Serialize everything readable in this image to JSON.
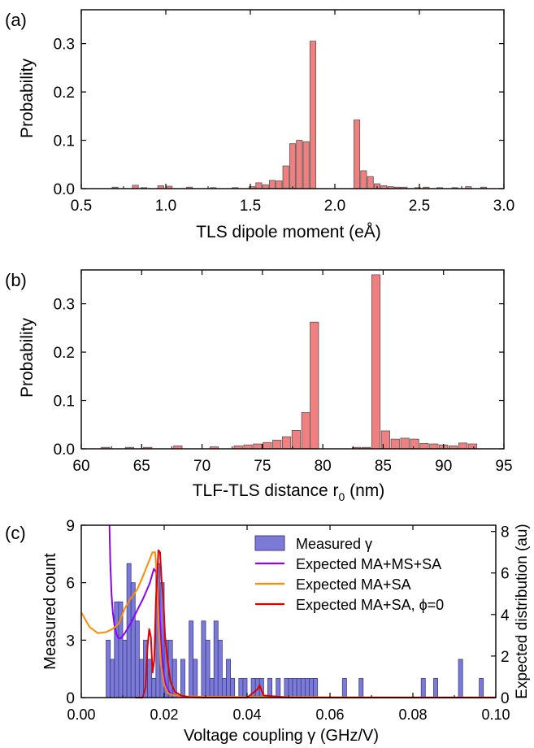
{
  "colors": {
    "bar_fill_red": "#f08080",
    "bar_stroke_red": "#555555",
    "bar_fill_blue": "#7b7ad6",
    "bar_stroke_blue": "#3c3c8c",
    "line_purple": "#8b00ff",
    "line_orange": "#ff8c00",
    "line_red": "#e00000"
  },
  "chart_data": [
    {
      "panel_label": "(a)",
      "type": "bar",
      "xlabel": "TLS dipole moment (eÅ)",
      "ylabel": "Probability",
      "xlim": [
        0.5,
        3.0
      ],
      "ylim": [
        0,
        0.37
      ],
      "bar_width": 0.035,
      "xticks": [
        0.5,
        1.0,
        1.5,
        2.0,
        2.5,
        3.0
      ],
      "xtick_labels": [
        "0.5",
        "1.0",
        "1.5",
        "2.0",
        "2.5",
        "3.0"
      ],
      "yticks": [
        0.0,
        0.1,
        0.2,
        0.3
      ],
      "ytick_labels": [
        "0.0",
        "0.1",
        "0.2",
        "0.3"
      ],
      "x": [
        0.7,
        0.82,
        0.87,
        0.97,
        1.02,
        1.14,
        1.28,
        1.41,
        1.51,
        1.55,
        1.59,
        1.63,
        1.67,
        1.71,
        1.75,
        1.79,
        1.83,
        1.87,
        1.91,
        2.13,
        2.17,
        2.21,
        2.25,
        2.29,
        2.33,
        2.37,
        2.41,
        2.49,
        2.54,
        2.62,
        2.71,
        2.79,
        2.88
      ],
      "values": [
        0.003,
        0.007,
        0.002,
        0.006,
        0.005,
        0.003,
        0.002,
        0.002,
        0.004,
        0.012,
        0.008,
        0.017,
        0.016,
        0.047,
        0.093,
        0.1,
        0.097,
        0.305,
        0.0,
        0.142,
        0.037,
        0.025,
        0.01,
        0.006,
        0.004,
        0.003,
        0.003,
        0.002,
        0.003,
        0.002,
        0.002,
        0.004,
        0.003
      ]
    },
    {
      "panel_label": "(b)",
      "type": "bar",
      "xlabel": "TLF-TLS distance r",
      "xlabel_sub": "0",
      "xlabel_tail": " (nm)",
      "ylabel": "Probability",
      "xlim": [
        60,
        95
      ],
      "ylim": [
        0,
        0.37
      ],
      "bar_width": 0.7,
      "xticks": [
        60,
        65,
        70,
        75,
        80,
        85,
        90,
        95
      ],
      "xtick_labels": [
        "60",
        "65",
        "70",
        "75",
        "80",
        "85",
        "90",
        "95"
      ],
      "yticks": [
        0.0,
        0.1,
        0.2,
        0.3
      ],
      "ytick_labels": [
        "0.0",
        "0.1",
        "0.2",
        "0.3"
      ],
      "x": [
        62,
        64,
        65.5,
        68,
        71,
        73,
        73.8,
        74.6,
        75.4,
        76.2,
        77,
        77.8,
        78.6,
        79.3,
        82.8,
        83.6,
        84.4,
        85.2,
        86,
        86.8,
        87.6,
        88.4,
        89.2,
        90,
        90.8,
        91.6,
        92.4
      ],
      "values": [
        0.003,
        0.003,
        0.003,
        0.006,
        0.004,
        0.006,
        0.008,
        0.01,
        0.013,
        0.018,
        0.025,
        0.038,
        0.075,
        0.262,
        0.003,
        0.003,
        0.36,
        0.037,
        0.02,
        0.022,
        0.02,
        0.011,
        0.01,
        0.008,
        0.006,
        0.012,
        0.01
      ]
    },
    {
      "panel_label": "(c)",
      "type": "bar",
      "xlabel": "Voltage coupling γ (GHz/V)",
      "ylabel": "Measured count",
      "ylabel_right": "Expected distribution (au)",
      "xlim": [
        0.0,
        0.1
      ],
      "ylim": [
        0,
        9
      ],
      "ylim_right": [
        0,
        8.3
      ],
      "bar_width": 0.001,
      "xticks": [
        0.0,
        0.02,
        0.04,
        0.06,
        0.08,
        0.1
      ],
      "xtick_labels": [
        "0.00",
        "0.02",
        "0.04",
        "0.06",
        "0.08",
        "0.10"
      ],
      "yticks": [
        0,
        3,
        6,
        9
      ],
      "ytick_labels": [
        "0",
        "3",
        "6",
        "9"
      ],
      "yticks_right": [
        0,
        2,
        4,
        6,
        8
      ],
      "ytick_labels_right": [
        "0",
        "2",
        "4",
        "6",
        "8"
      ],
      "histogram": {
        "name": "Measured γ",
        "x": [
          0.0065,
          0.0075,
          0.0085,
          0.0095,
          0.0105,
          0.0115,
          0.0125,
          0.0135,
          0.0145,
          0.0155,
          0.0165,
          0.0175,
          0.0185,
          0.0195,
          0.0205,
          0.0215,
          0.0225,
          0.0245,
          0.0265,
          0.0275,
          0.0295,
          0.0305,
          0.0315,
          0.0325,
          0.0335,
          0.0345,
          0.0355,
          0.0365,
          0.0385,
          0.0395,
          0.0415,
          0.0425,
          0.0435,
          0.0455,
          0.0475,
          0.0495,
          0.0505,
          0.0515,
          0.0525,
          0.0535,
          0.0545,
          0.0555,
          0.0565,
          0.0635,
          0.0675,
          0.0825,
          0.0855,
          0.0915,
          0.0965
        ],
        "values": [
          3,
          2,
          5,
          5,
          3,
          7,
          6,
          4,
          2,
          3,
          2,
          1,
          7,
          6,
          3,
          3,
          2,
          2,
          4,
          2,
          4,
          3,
          1,
          4,
          3,
          1,
          2,
          1,
          1,
          1,
          1,
          1,
          1,
          1,
          1,
          1,
          1,
          1,
          1,
          1,
          1,
          1,
          1,
          1,
          1,
          1,
          1,
          2,
          1
        ]
      },
      "series": [
        {
          "name": "Expected MA+MS+SA",
          "x": [
            0.0068,
            0.007,
            0.0073,
            0.0076,
            0.008,
            0.0085,
            0.009,
            0.0095,
            0.0105,
            0.012,
            0.0135,
            0.015,
            0.0165,
            0.0175,
            0.0182,
            0.0188,
            0.0193,
            0.0198,
            0.0205,
            0.0215,
            0.023,
            0.026,
            0.03,
            0.04,
            0.06,
            0.08,
            0.1
          ],
          "values": [
            8.3,
            6.5,
            5.0,
            4.1,
            3.5,
            3.05,
            2.85,
            2.85,
            3.1,
            3.6,
            4.2,
            4.8,
            5.5,
            6.2,
            6.0,
            4.4,
            2.6,
            1.2,
            0.5,
            0.2,
            0.08,
            0.04,
            0.02,
            0.01,
            0.005,
            0.003,
            0.002
          ]
        },
        {
          "name": "Expected MA+SA",
          "x": [
            0.0,
            0.002,
            0.004,
            0.006,
            0.0075,
            0.009,
            0.0105,
            0.012,
            0.0135,
            0.015,
            0.0162,
            0.0172,
            0.0178,
            0.0183,
            0.0187,
            0.0192,
            0.02,
            0.021,
            0.0225,
            0.025,
            0.03,
            0.04,
            0.06,
            0.08,
            0.1
          ],
          "values": [
            4.1,
            3.4,
            3.1,
            3.15,
            3.3,
            3.55,
            4.3,
            4.8,
            5.2,
            5.9,
            6.5,
            7.0,
            7.0,
            5.8,
            3.4,
            1.6,
            0.6,
            0.2,
            0.1,
            0.06,
            0.04,
            0.03,
            0.02,
            0.01,
            0.01
          ]
        },
        {
          "name": "Expected MA+SA, ϕ=0",
          "x": [
            0.013,
            0.0148,
            0.0155,
            0.016,
            0.0164,
            0.0168,
            0.0172,
            0.0176,
            0.018,
            0.0186,
            0.019,
            0.0194,
            0.0198,
            0.0202,
            0.0208,
            0.0215,
            0.0225,
            0.024,
            0.026,
            0.03,
            0.035,
            0.04,
            0.0425,
            0.043,
            0.044,
            0.05,
            0.06,
            0.08,
            0.1
          ],
          "values": [
            0.0,
            0.0,
            0.5,
            2.5,
            3.3,
            2.9,
            1.2,
            1.8,
            4.6,
            7.1,
            7.0,
            5.6,
            4.8,
            3.0,
            1.8,
            0.8,
            0.3,
            0.1,
            0.02,
            0.0,
            0.0,
            0.0,
            0.4,
            0.6,
            0.1,
            0.0,
            0.0,
            0.0,
            0.0
          ]
        }
      ],
      "legend_placement": "top-right"
    }
  ]
}
